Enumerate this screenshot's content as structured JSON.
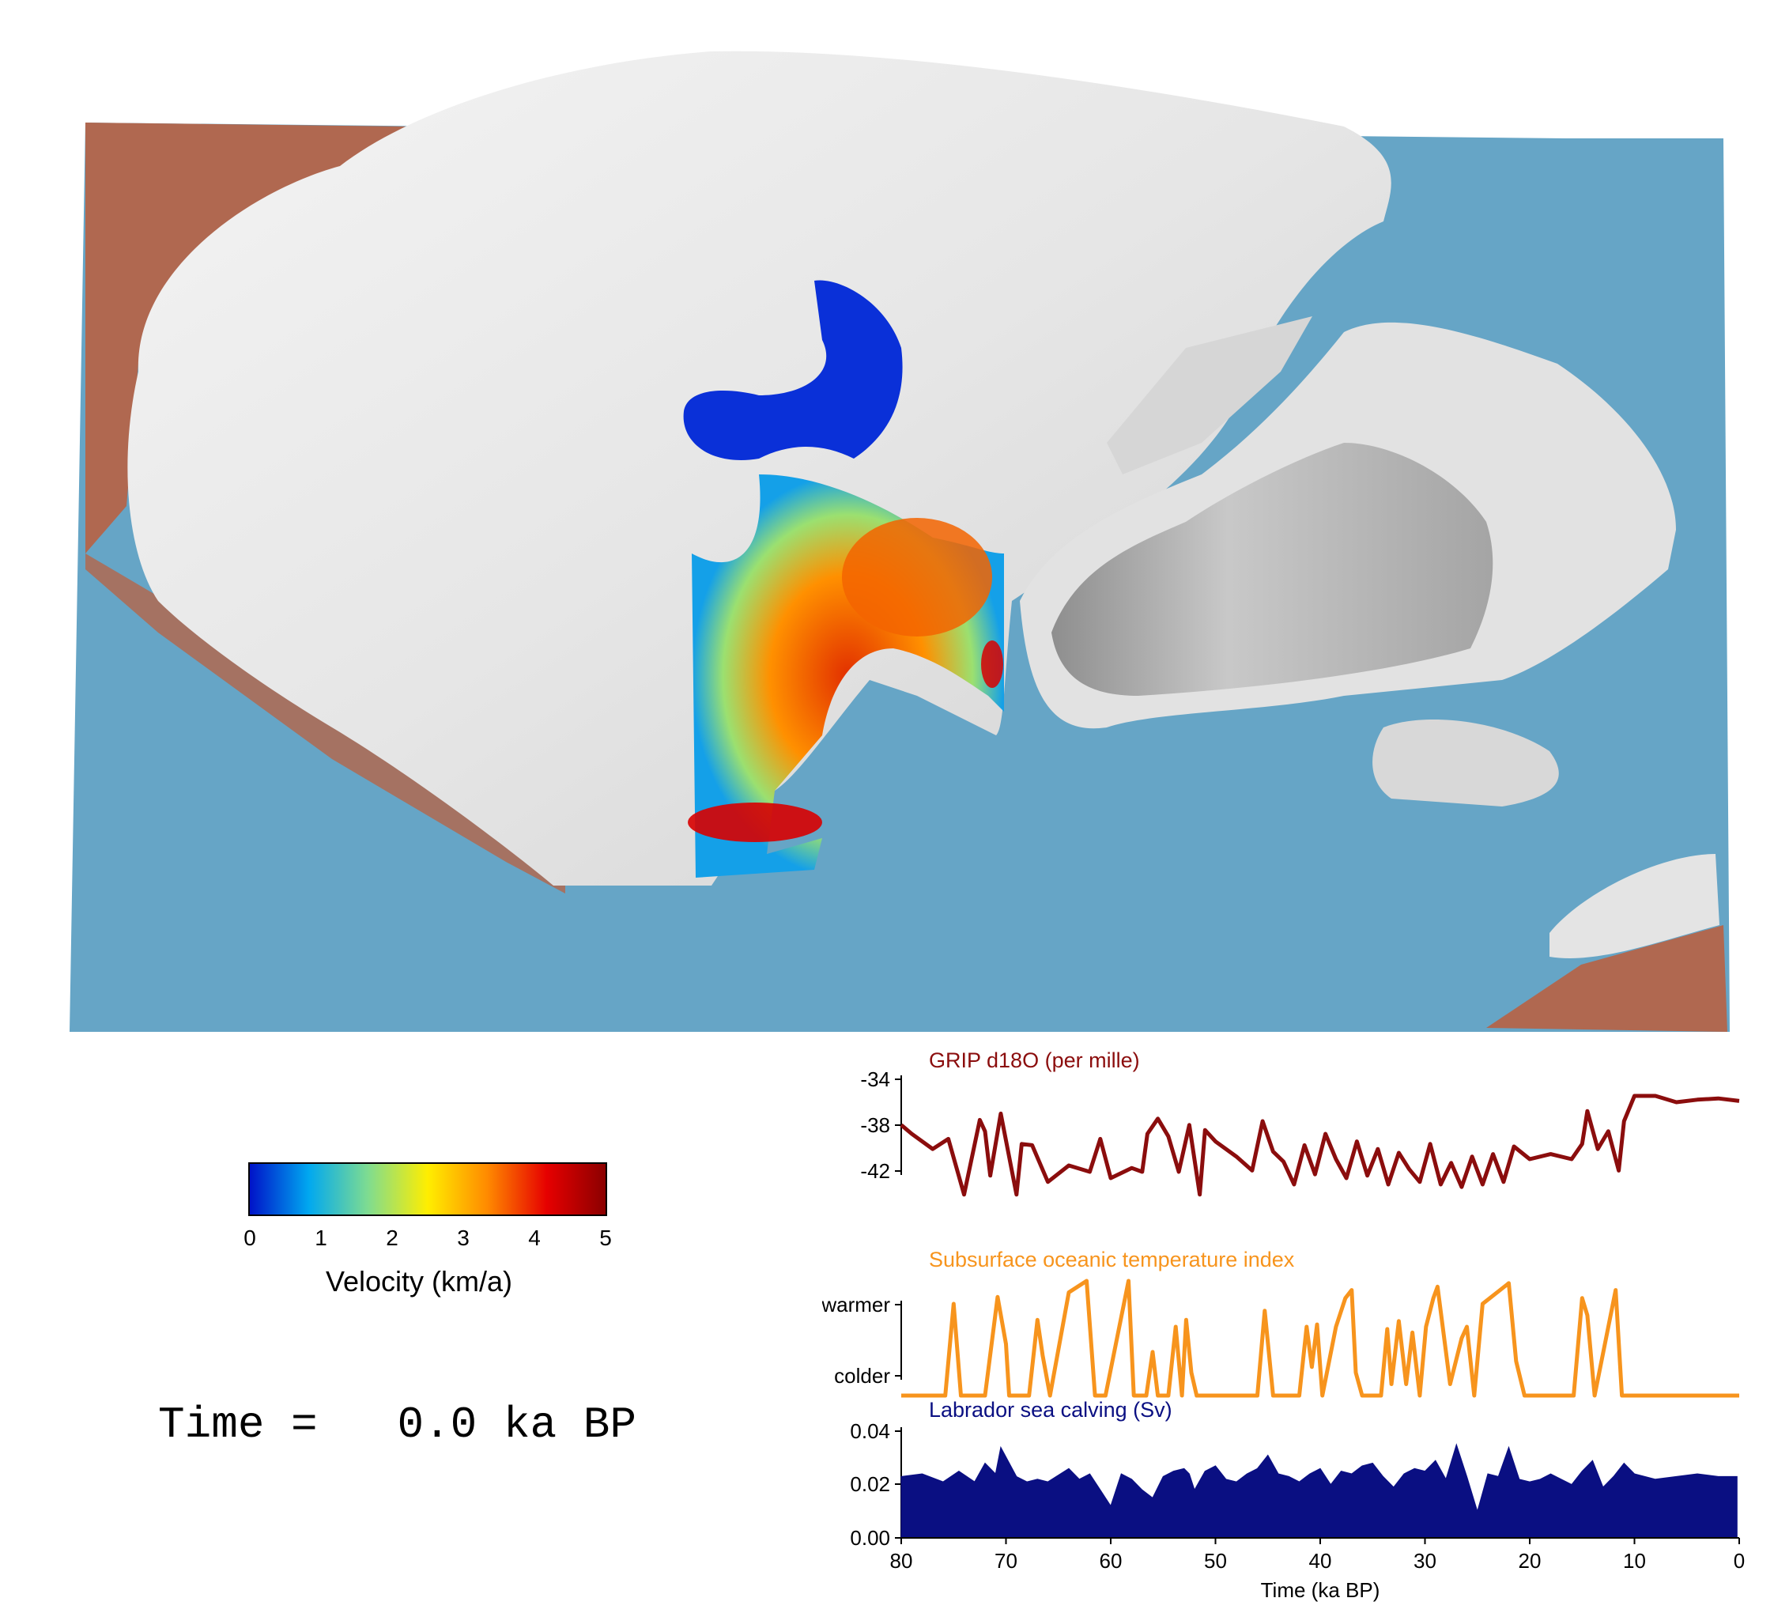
{
  "time_display": {
    "label": "Time =",
    "value": "0.0 ka BP"
  },
  "colorbar": {
    "label": "Velocity (km/a)",
    "ticks": [
      "0",
      "1",
      "2",
      "3",
      "4",
      "5"
    ],
    "colors": [
      "#0011c8",
      "#00a8f0",
      "#7fdc90",
      "#ffee00",
      "#ff8a00",
      "#e60000",
      "#8a0000"
    ]
  },
  "map_colors": {
    "ocean": "#66a5c6",
    "land": "#b06850",
    "ice": "#e8e8e8"
  },
  "chart_data": [
    {
      "type": "line",
      "title": "GRIP d18O (per mille)",
      "color": "#8b0d0d",
      "yticks": [
        "-34",
        "-38",
        "-42"
      ],
      "ylim": [
        -44,
        -34
      ],
      "x": [
        80,
        79,
        77,
        75.5,
        74,
        72.5,
        72,
        71.5,
        70.5,
        69,
        68.5,
        67.5,
        66,
        64,
        62,
        61,
        60,
        58,
        57,
        56.5,
        55.5,
        54.5,
        53.5,
        52.5,
        51.5,
        51,
        50,
        48,
        46.5,
        45.5,
        44.5,
        43.5,
        42.5,
        41.5,
        40.5,
        39.5,
        38.5,
        37.5,
        36.5,
        35.5,
        34.5,
        33.5,
        32.5,
        31.5,
        30.5,
        29.5,
        28.5,
        27.5,
        26.5,
        25.5,
        24.5,
        23.5,
        22.5,
        21.5,
        20,
        18,
        16,
        15,
        14.5,
        13.5,
        12.5,
        11.5,
        11,
        10,
        8,
        6,
        4,
        2,
        0
      ],
      "values": [
        -37.3,
        -38.0,
        -39.2,
        -38.4,
        -42.8,
        -36.9,
        -37.8,
        -41.3,
        -36.4,
        -42.8,
        -38.8,
        -38.9,
        -41.8,
        -40.5,
        -41.0,
        -38.4,
        -41.5,
        -40.7,
        -41.0,
        -38.0,
        -36.8,
        -38.2,
        -41.0,
        -37.3,
        -42.8,
        -37.7,
        -38.6,
        -39.8,
        -40.9,
        -37.0,
        -39.4,
        -40.2,
        -42.0,
        -38.9,
        -41.2,
        -38.0,
        -40.0,
        -41.5,
        -38.6,
        -41.3,
        -39.2,
        -42.0,
        -39.5,
        -40.8,
        -41.8,
        -38.8,
        -42.0,
        -40.3,
        -42.2,
        -39.8,
        -42.0,
        -39.6,
        -41.8,
        -39.0,
        -40.0,
        -39.6,
        -40.0,
        -38.8,
        -36.2,
        -39.2,
        -37.8,
        -40.9,
        -37.0,
        -35.0,
        -35.0,
        -35.5,
        -35.3,
        -35.2,
        -35.4
      ]
    },
    {
      "type": "line",
      "title": "Subsurface oceanic temperature index",
      "color": "#f7941d",
      "yticks": [
        "warmer",
        "colder"
      ],
      "ylim": [
        0,
        1
      ],
      "x": [
        80,
        75.8,
        75,
        74.3,
        72,
        70.8,
        70,
        69.7,
        67.8,
        67,
        66.5,
        65.8,
        64,
        62.3,
        61.5,
        60.5,
        58.3,
        57.8,
        56.6,
        56.0,
        55.5,
        54.5,
        53.8,
        53.2,
        52.8,
        52.3,
        51.8,
        46.0,
        45.3,
        44.5,
        42.0,
        41.3,
        40.8,
        40.3,
        39.8,
        38.5,
        37.6,
        37.0,
        36.6,
        36.0,
        34.2,
        33.6,
        33.2,
        32.5,
        31.8,
        31.2,
        30.5,
        29.9,
        29.2,
        28.8,
        27.6,
        26.5,
        26.0,
        25.3,
        24.5,
        22.0,
        21.3,
        20.5,
        15.8,
        15.0,
        14.5,
        13.8,
        11.8,
        11.2,
        0
      ],
      "values": [
        0,
        0,
        0.8,
        0,
        0,
        0.86,
        0.45,
        0,
        0,
        0.66,
        0.35,
        0,
        0.9,
        1.0,
        0,
        0,
        1.0,
        0,
        0,
        0.38,
        0,
        0,
        0.6,
        0,
        0.66,
        0.2,
        0,
        0,
        0.74,
        0,
        0,
        0.6,
        0.25,
        0.62,
        0,
        0.6,
        0.85,
        0.92,
        0.2,
        0,
        0,
        0.58,
        0.1,
        0.65,
        0.1,
        0.55,
        0,
        0.6,
        0.85,
        0.95,
        0.1,
        0.5,
        0.6,
        0,
        0.8,
        0.98,
        0.3,
        0,
        0,
        0.85,
        0.7,
        0,
        0.92,
        0,
        0
      ],
      "ylabel": ""
    },
    {
      "type": "area",
      "title": "Labrador sea calving (Sv)",
      "color": "#0a0f82",
      "yticks": [
        "0.04",
        "0.02",
        "0.00"
      ],
      "ylim": [
        0,
        0.04
      ],
      "x": [
        80,
        78,
        76,
        74.5,
        73,
        72,
        71,
        70.5,
        69,
        68,
        67,
        66,
        64,
        63,
        62,
        61,
        60,
        59,
        58,
        57,
        56,
        55,
        54,
        53,
        52.5,
        52,
        51,
        50,
        49,
        48,
        47,
        46,
        45,
        44,
        43,
        42,
        41,
        40,
        39,
        38,
        37,
        36,
        35,
        34,
        33,
        32,
        31,
        30,
        29,
        28,
        27,
        26,
        25,
        24,
        23,
        22,
        21,
        20,
        19,
        18,
        17,
        16,
        15,
        14,
        13,
        12,
        11,
        10,
        8,
        6,
        4,
        2,
        0.2
      ],
      "values": [
        0.023,
        0.024,
        0.021,
        0.025,
        0.021,
        0.028,
        0.024,
        0.034,
        0.023,
        0.021,
        0.022,
        0.021,
        0.026,
        0.022,
        0.024,
        0.018,
        0.012,
        0.024,
        0.022,
        0.018,
        0.015,
        0.023,
        0.025,
        0.026,
        0.024,
        0.018,
        0.025,
        0.027,
        0.022,
        0.021,
        0.024,
        0.026,
        0.031,
        0.024,
        0.023,
        0.021,
        0.024,
        0.026,
        0.02,
        0.025,
        0.024,
        0.027,
        0.028,
        0.023,
        0.019,
        0.024,
        0.026,
        0.025,
        0.029,
        0.022,
        0.035,
        0.023,
        0.01,
        0.024,
        0.023,
        0.034,
        0.022,
        0.021,
        0.022,
        0.024,
        0.022,
        0.02,
        0.025,
        0.029,
        0.019,
        0.023,
        0.028,
        0.024,
        0.022,
        0.023,
        0.024,
        0.023,
        0.023
      ]
    }
  ],
  "xaxis": {
    "label": "Time (ka BP)",
    "ticks": [
      "80",
      "70",
      "60",
      "50",
      "40",
      "30",
      "20",
      "10",
      "0"
    ],
    "xlim": [
      80,
      0
    ]
  }
}
